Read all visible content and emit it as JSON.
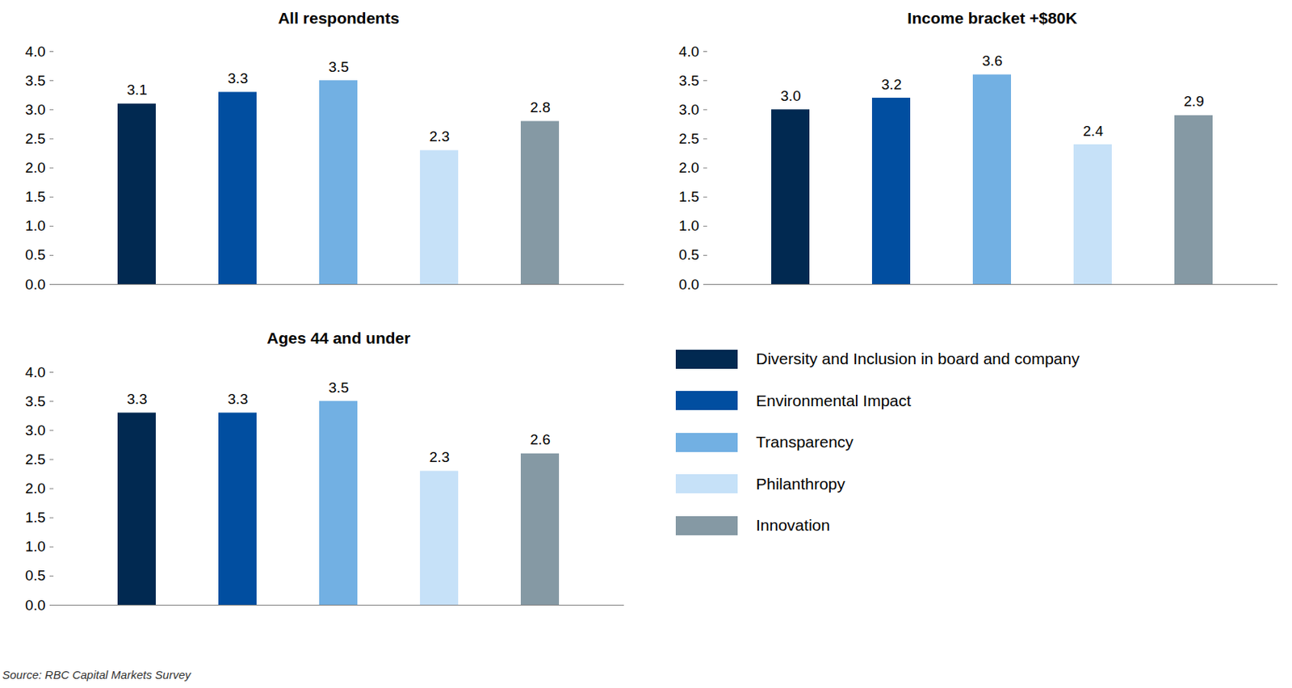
{
  "chart_data": [
    {
      "type": "bar",
      "title": "All respondents",
      "categories": [
        "Diversity and Inclusion in board and company",
        "Environmental Impact",
        "Transparency",
        "Philanthropy",
        "Innovation"
      ],
      "values": [
        3.1,
        3.3,
        3.5,
        2.3,
        2.8
      ],
      "value_labels": [
        "3.1",
        "3.3",
        "3.5",
        "2.3",
        "2.8"
      ],
      "colors": [
        "#012951",
        "#014ea0",
        "#72b0e3",
        "#c6e1f8",
        "#8599a4"
      ],
      "ylim": [
        0,
        4
      ],
      "yticks": [
        {
          "value": 0,
          "label": "0.0"
        },
        {
          "value": 0.5,
          "label": "0.5"
        },
        {
          "value": 1,
          "label": "1.0"
        },
        {
          "value": 1.5,
          "label": "1.5"
        },
        {
          "value": 2,
          "label": "2.0"
        },
        {
          "value": 2.5,
          "label": "2.5"
        },
        {
          "value": 3,
          "label": "3.0"
        },
        {
          "value": 3.5,
          "label": "3.5"
        },
        {
          "value": 4,
          "label": "4.0"
        }
      ],
      "data_labels": true,
      "tick_labels": "y"
    },
    {
      "type": "bar",
      "title": "Income bracket +$80K",
      "categories": [
        "Diversity and Inclusion in board and company",
        "Environmental Impact",
        "Transparency",
        "Philanthropy",
        "Innovation"
      ],
      "values": [
        3.0,
        3.2,
        3.6,
        2.4,
        2.9
      ],
      "value_labels": [
        "3.0",
        "3.2",
        "3.6",
        "2.4",
        "2.9"
      ],
      "colors": [
        "#012951",
        "#014ea0",
        "#72b0e3",
        "#c6e1f8",
        "#8599a4"
      ],
      "ylim": [
        0,
        4
      ],
      "yticks": [
        {
          "value": 0,
          "label": "0.0"
        },
        {
          "value": 0.5,
          "label": "0.5"
        },
        {
          "value": 1,
          "label": "1.0"
        },
        {
          "value": 1.5,
          "label": "1.5"
        },
        {
          "value": 2,
          "label": "2.0"
        },
        {
          "value": 2.5,
          "label": "2.5"
        },
        {
          "value": 3,
          "label": "3.0"
        },
        {
          "value": 3.5,
          "label": "3.5"
        },
        {
          "value": 4,
          "label": "4.0"
        }
      ],
      "data_labels": true,
      "tick_labels": "y"
    },
    {
      "type": "bar",
      "title": "Ages 44 and under",
      "categories": [
        "Diversity and Inclusion in board and company",
        "Environmental Impact",
        "Transparency",
        "Philanthropy",
        "Innovation"
      ],
      "values": [
        3.3,
        3.3,
        3.5,
        2.3,
        2.6
      ],
      "value_labels": [
        "3.3",
        "3.3",
        "3.5",
        "2.3",
        "2.6"
      ],
      "colors": [
        "#012951",
        "#014ea0",
        "#72b0e3",
        "#c6e1f8",
        "#8599a4"
      ],
      "ylim": [
        0,
        4
      ],
      "yticks": [
        {
          "value": 0,
          "label": "0.0"
        },
        {
          "value": 0.5,
          "label": "0.5"
        },
        {
          "value": 1,
          "label": "1.0"
        },
        {
          "value": 1.5,
          "label": "1.5"
        },
        {
          "value": 2,
          "label": "2.0"
        },
        {
          "value": 2.5,
          "label": "2.5"
        },
        {
          "value": 3,
          "label": "3.0"
        },
        {
          "value": 3.5,
          "label": "3.5"
        },
        {
          "value": 4,
          "label": "4.0"
        }
      ],
      "data_labels": true,
      "tick_labels": "y"
    }
  ],
  "source": "Source: RBC Capital Markets Survey"
}
